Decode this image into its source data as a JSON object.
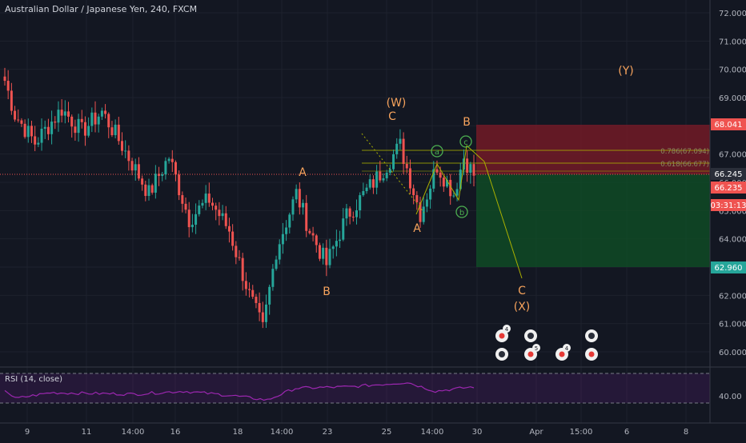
{
  "header": {
    "title": "Australian Dollar / Japanese Yen, 240, FXCM"
  },
  "colors": {
    "background": "#131722",
    "up": "#26a69a",
    "down": "#ef5350",
    "wave": "#f7a35c",
    "minor_wave": "#4caf50",
    "fib": "#aab000",
    "stop_zone": "#7a1a26",
    "target_zone": "#0f4d25",
    "rsi": "#9c27b0"
  },
  "price_axis": {
    "ticks": [
      "72.000",
      "71.000",
      "70.000",
      "69.000",
      "68.000",
      "67.000",
      "66.000",
      "65.000",
      "64.000",
      "63.000",
      "62.000",
      "61.000",
      "60.000"
    ],
    "stop_label": "68.041",
    "price_label": "66.245",
    "current_label": "66.235",
    "countdown_label": "03:31:13",
    "target_label": "62.960"
  },
  "time_axis": {
    "ticks": [
      "9",
      "11",
      "14:00",
      "16",
      "18",
      "14:00",
      "23",
      "25",
      "14:00",
      "30",
      "Apr",
      "15:00",
      "6",
      "8"
    ]
  },
  "wave_labels": {
    "W": "(W)",
    "C_top": "C",
    "A_first": "A",
    "B_first": "B",
    "A_second": "A",
    "B_second": "B",
    "C_proj": "C",
    "X": "(X)",
    "Y": "(Y)",
    "a": "a",
    "b": "b",
    "c": "c"
  },
  "fib": {
    "level_786": "0.786(67.094)",
    "level_618": "0.618(66.677)"
  },
  "rsi": {
    "label": "RSI (14, close)",
    "tick_label": "40.00",
    "upper": 70,
    "lower": 30,
    "min": 0,
    "max": 100
  },
  "events": {
    "badges": [
      "4",
      "5",
      "4"
    ]
  },
  "chart_data": {
    "type": "candlestick",
    "title": "Australian Dollar / Japanese Yen, 240, FXCM",
    "ylim": [
      59.5,
      72.4
    ],
    "current_price": 66.235,
    "wave_points": [
      {
        "label": "(W) C",
        "price": 67.3
      },
      {
        "label": "A",
        "price": 64.8
      },
      {
        "label": "B",
        "price": 66.8
      }
    ],
    "position": {
      "stop": 68.041,
      "entry": 66.245,
      "target": 62.96
    },
    "rsi_reference_levels": [
      70,
      30
    ],
    "segments": [
      {
        "start": 70.0,
        "end": 68.4,
        "n": 4
      },
      {
        "start": 68.4,
        "end": 67.4,
        "n": 6
      },
      {
        "start": 67.4,
        "end": 68.6,
        "n": 8
      },
      {
        "start": 68.6,
        "end": 67.8,
        "n": 6
      },
      {
        "start": 67.8,
        "end": 68.5,
        "n": 6
      },
      {
        "start": 68.5,
        "end": 67.3,
        "n": 6
      },
      {
        "start": 67.3,
        "end": 65.6,
        "n": 8
      },
      {
        "start": 65.6,
        "end": 66.9,
        "n": 6
      },
      {
        "start": 66.9,
        "end": 64.7,
        "n": 6
      },
      {
        "start": 64.7,
        "end": 65.4,
        "n": 6
      },
      {
        "start": 65.4,
        "end": 64.3,
        "n": 6
      },
      {
        "start": 64.3,
        "end": 62.0,
        "n": 6
      },
      {
        "start": 62.0,
        "end": 60.8,
        "n": 4
      },
      {
        "start": 60.8,
        "end": 63.6,
        "n": 4
      },
      {
        "start": 63.6,
        "end": 65.6,
        "n": 6
      },
      {
        "start": 65.6,
        "end": 64.3,
        "n": 4
      },
      {
        "start": 64.3,
        "end": 63.1,
        "n": 5
      },
      {
        "start": 63.1,
        "end": 64.8,
        "n": 6
      },
      {
        "start": 64.8,
        "end": 66.3,
        "n": 10
      },
      {
        "start": 66.3,
        "end": 67.3,
        "n": 6
      },
      {
        "start": 67.3,
        "end": 64.9,
        "n": 6
      },
      {
        "start": 64.9,
        "end": 66.6,
        "n": 5
      },
      {
        "start": 66.6,
        "end": 65.6,
        "n": 5
      },
      {
        "start": 65.6,
        "end": 66.9,
        "n": 3
      },
      {
        "start": 66.9,
        "end": 66.25,
        "n": 3
      }
    ],
    "rsi_segments": [
      {
        "start": 52,
        "end": 36,
        "n": 4
      },
      {
        "start": 36,
        "end": 44,
        "n": 10
      },
      {
        "start": 44,
        "end": 42,
        "n": 24
      },
      {
        "start": 42,
        "end": 46,
        "n": 14
      },
      {
        "start": 46,
        "end": 40,
        "n": 14
      },
      {
        "start": 40,
        "end": 34,
        "n": 10
      },
      {
        "start": 34,
        "end": 50,
        "n": 8
      },
      {
        "start": 50,
        "end": 52,
        "n": 16
      },
      {
        "start": 52,
        "end": 58,
        "n": 16
      },
      {
        "start": 58,
        "end": 46,
        "n": 8
      },
      {
        "start": 46,
        "end": 52,
        "n": 11
      }
    ]
  }
}
